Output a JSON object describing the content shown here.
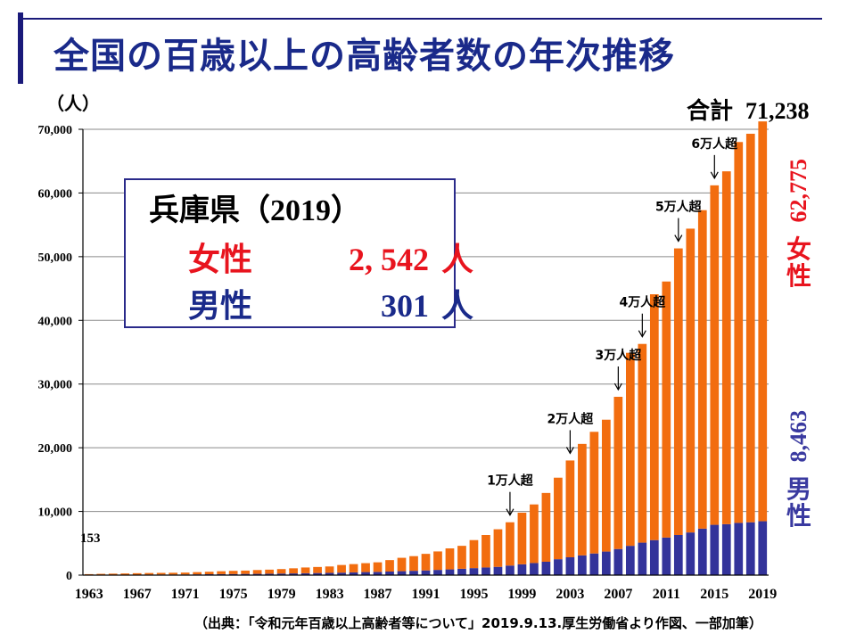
{
  "header": {
    "title": "全国の百歳以上の高齢者数の年次推移",
    "unit": "（人）"
  },
  "total": {
    "label": "合計",
    "value": "71,238"
  },
  "first_value_label": "153",
  "info_box": {
    "title_prefix": "兵庫県（",
    "title_year": "2019",
    "title_suffix": "）",
    "female_label": "女性",
    "female_value": "2, 542",
    "male_label": "男性",
    "male_value": "301",
    "unit": "人"
  },
  "side_labels": {
    "female_value": "62,775",
    "female_label": "女性",
    "male_value": "8,463",
    "male_label": "男性"
  },
  "source": "（出典：「令和元年百歳以上高齢者等について」2019.9.13.厚生労働省より作図、一部加筆）",
  "colors": {
    "female": "#f26d0f",
    "male": "#33339a",
    "female_text": "#e8141e",
    "title": "#1a2a8a"
  },
  "chart_data": {
    "type": "bar",
    "stacked": true,
    "ylim": [
      0,
      70000
    ],
    "yticks": [
      0,
      10000,
      20000,
      30000,
      40000,
      50000,
      60000,
      70000
    ],
    "ytick_labels": [
      "0",
      "10,000",
      "20,000",
      "30,000",
      "40,000",
      "50,000",
      "60,000",
      "70,000"
    ],
    "xtick_labels": [
      "1963",
      "1967",
      "1971",
      "1975",
      "1979",
      "1983",
      "1987",
      "1991",
      "1995",
      "1999",
      "2003",
      "2007",
      "2011",
      "2015",
      "2019"
    ],
    "categories": [
      "1963",
      "1964",
      "1965",
      "1966",
      "1967",
      "1968",
      "1969",
      "1970",
      "1971",
      "1972",
      "1973",
      "1974",
      "1975",
      "1976",
      "1977",
      "1978",
      "1979",
      "1980",
      "1981",
      "1982",
      "1983",
      "1984",
      "1985",
      "1986",
      "1987",
      "1988",
      "1989",
      "1990",
      "1991",
      "1992",
      "1993",
      "1994",
      "1995",
      "1996",
      "1997",
      "1998",
      "1999",
      "2000",
      "2001",
      "2002",
      "2003",
      "2004",
      "2005",
      "2006",
      "2007",
      "2008",
      "2009",
      "2010",
      "2011",
      "2012",
      "2013",
      "2014",
      "2015",
      "2016",
      "2017",
      "2018",
      "2019"
    ],
    "series": [
      {
        "name": "男性",
        "values": [
          20,
          40,
          50,
          60,
          70,
          80,
          90,
          90,
          100,
          120,
          140,
          160,
          170,
          190,
          200,
          220,
          250,
          270,
          300,
          330,
          360,
          390,
          430,
          480,
          510,
          560,
          620,
          680,
          740,
          820,
          900,
          1000,
          1100,
          1200,
          1300,
          1500,
          1700,
          1900,
          2100,
          2500,
          2800,
          3100,
          3400,
          3700,
          4100,
          4600,
          5100,
          5500,
          5900,
          6300,
          6700,
          7300,
          7900,
          8000,
          8200,
          8300,
          8463
        ]
      },
      {
        "name": "女性",
        "values": [
          133,
          160,
          180,
          200,
          230,
          250,
          260,
          280,
          300,
          350,
          390,
          450,
          500,
          520,
          600,
          640,
          700,
          800,
          900,
          950,
          1000,
          1200,
          1300,
          1400,
          1500,
          1800,
          2100,
          2300,
          2600,
          2900,
          3300,
          3600,
          4400,
          5100,
          5900,
          6800,
          8100,
          9200,
          10800,
          12800,
          15200,
          17500,
          19100,
          20700,
          23900,
          30300,
          31200,
          38600,
          40200,
          45000,
          47700,
          50000,
          53300,
          55400,
          59800,
          61000,
          62775
        ]
      }
    ],
    "annotations": [
      {
        "text": "1万人超",
        "x": "1998"
      },
      {
        "text": "2万人超",
        "x": "2003"
      },
      {
        "text": "3万人超",
        "x": "2007"
      },
      {
        "text": "4万人超",
        "x": "2009"
      },
      {
        "text": "5万人超",
        "x": "2012"
      },
      {
        "text": "6万人超",
        "x": "2015"
      }
    ]
  }
}
